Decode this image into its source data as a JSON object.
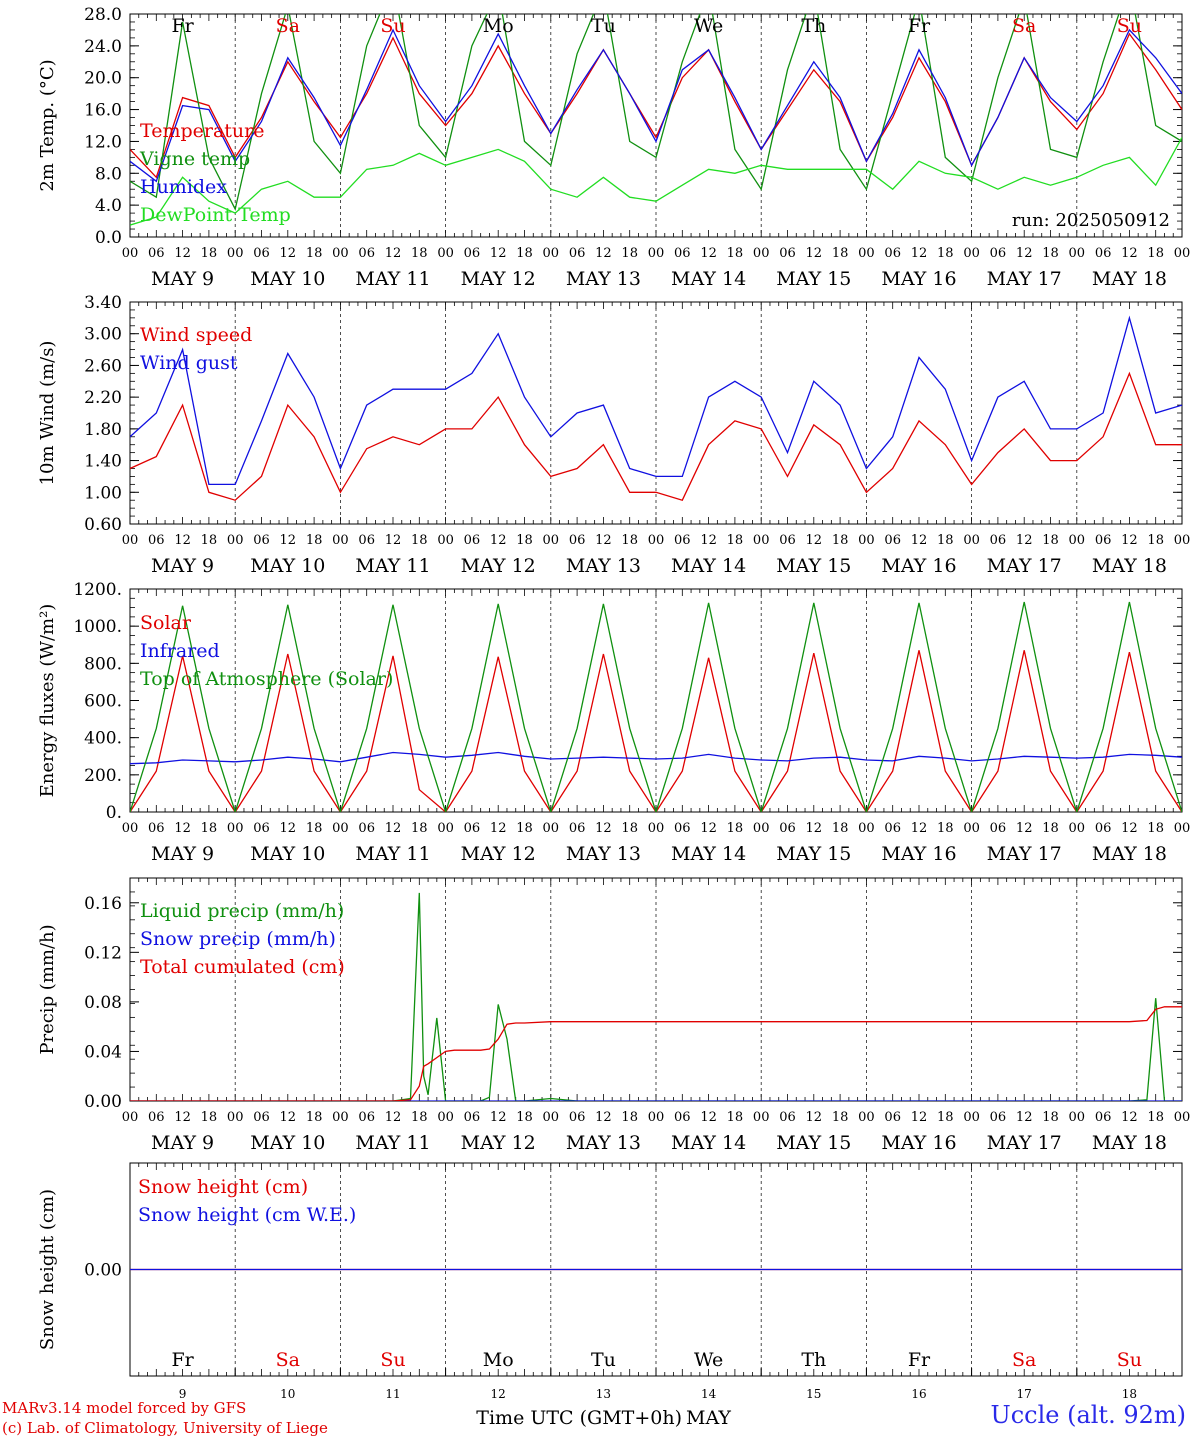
{
  "days": [
    "9",
    "10",
    "11",
    "12",
    "13",
    "14",
    "15",
    "16",
    "17",
    "18"
  ],
  "month": "MAY",
  "weekdays": [
    "Fr",
    "Sa",
    "Su",
    "Mo",
    "Tu",
    "We",
    "Th",
    "Fr",
    "Sa",
    "Su"
  ],
  "weekday_colors": [
    "#000000",
    "#e00000",
    "#e00000",
    "#000000",
    "#000000",
    "#000000",
    "#000000",
    "#000000",
    "#e00000",
    "#e00000"
  ],
  "hour_labels": [
    "00",
    "06",
    "12",
    "18"
  ],
  "run_label": "run: 2025050912",
  "xlabel": "Time UTC (GMT+0h)",
  "xlabel_month": "MAY",
  "credit": [
    "MARv3.14 model forced by GFS",
    "(c) Lab. of Climatology, University of Liege"
  ],
  "station": "Uccle (alt. 92m)",
  "colors": {
    "red": "#e00000",
    "blue": "#1010e0",
    "green": "#109010",
    "lightgreen": "#22dd22"
  },
  "chart_data": [
    {
      "type": "line",
      "ylabel": "2m Temp. (°C)",
      "ylim": [
        0,
        28
      ],
      "yticks": [
        "0.0",
        "4.0",
        "8.0",
        "12.0",
        "16.0",
        "20.0",
        "24.0",
        "28.0"
      ],
      "x_hours": [
        0,
        6,
        12,
        18,
        24,
        30,
        36,
        42,
        48,
        54,
        60,
        66,
        72,
        78,
        84,
        90,
        96,
        102,
        108,
        114,
        120,
        126,
        132,
        138,
        144,
        150,
        156,
        162,
        168,
        174,
        180,
        186,
        192,
        198,
        204,
        210,
        216,
        222,
        228,
        234,
        240
      ],
      "series": [
        {
          "name": "Temperature",
          "color": "#e00000",
          "values": [
            11.0,
            7.5,
            17.5,
            16.5,
            10.0,
            15.0,
            22.0,
            17.0,
            12.5,
            18.0,
            25.0,
            18.0,
            14.0,
            18.0,
            24.0,
            18.0,
            13.0,
            18.0,
            23.5,
            18.0,
            12.5,
            20.0,
            23.5,
            17.0,
            11.0,
            16.0,
            21.0,
            17.0,
            9.5,
            15.0,
            22.5,
            17.0,
            9.0,
            15.0,
            22.5,
            17.0,
            13.5,
            18.0,
            25.5,
            21.0,
            16.0
          ]
        },
        {
          "name": "Vigne temp",
          "color": "#109010",
          "values": [
            7.0,
            5.0,
            27.0,
            10.0,
            3.5,
            18.0,
            29.0,
            12.0,
            8.0,
            24.0,
            32.0,
            14.0,
            10.0,
            24.0,
            31.0,
            12.0,
            9.0,
            23.0,
            31.0,
            12.0,
            10.0,
            22.0,
            31.0,
            11.0,
            6.0,
            21.0,
            31.0,
            11.0,
            6.0,
            18.0,
            30.0,
            10.0,
            7.0,
            20.0,
            30.0,
            11.0,
            10.0,
            22.0,
            32.0,
            14.0,
            12.0
          ]
        },
        {
          "name": "Humidex",
          "color": "#1010e0",
          "values": [
            9.5,
            7.0,
            16.5,
            16.0,
            9.5,
            14.5,
            22.5,
            17.5,
            11.5,
            18.5,
            26.0,
            19.0,
            14.5,
            19.0,
            25.5,
            19.0,
            13.0,
            18.5,
            23.5,
            18.0,
            12.0,
            21.0,
            23.5,
            17.5,
            11.0,
            16.5,
            22.0,
            17.5,
            9.5,
            15.5,
            23.5,
            17.5,
            9.0,
            15.0,
            22.5,
            17.5,
            14.5,
            19.0,
            26.0,
            22.5,
            18.0
          ]
        },
        {
          "name": "DewPoint Temp",
          "color": "#22dd22",
          "values": [
            1.5,
            2.5,
            7.5,
            4.5,
            3.0,
            6.0,
            7.0,
            5.0,
            5.0,
            8.5,
            9.0,
            10.5,
            9.0,
            10.0,
            11.0,
            9.5,
            6.0,
            5.0,
            7.5,
            5.0,
            4.5,
            6.5,
            8.5,
            8.0,
            9.0,
            8.5,
            8.5,
            8.5,
            8.5,
            6.0,
            9.5,
            8.0,
            7.5,
            6.0,
            7.5,
            6.5,
            7.5,
            9.0,
            10.0,
            6.5,
            12.5
          ]
        }
      ]
    },
    {
      "type": "line",
      "ylabel": "10m Wind (m/s)",
      "ylim": [
        0.6,
        3.4
      ],
      "yticks": [
        "0.60",
        "1.00",
        "1.40",
        "1.80",
        "2.20",
        "2.60",
        "3.00",
        "3.40"
      ],
      "x_hours": [
        0,
        6,
        12,
        18,
        24,
        30,
        36,
        42,
        48,
        54,
        60,
        66,
        72,
        78,
        84,
        90,
        96,
        102,
        108,
        114,
        120,
        126,
        132,
        138,
        144,
        150,
        156,
        162,
        168,
        174,
        180,
        186,
        192,
        198,
        204,
        210,
        216,
        222,
        228,
        234,
        240
      ],
      "series": [
        {
          "name": "Wind speed",
          "color": "#e00000",
          "values": [
            1.3,
            1.45,
            2.1,
            1.0,
            0.9,
            1.2,
            2.1,
            1.7,
            1.0,
            1.55,
            1.7,
            1.6,
            1.8,
            1.8,
            2.2,
            1.6,
            1.2,
            1.3,
            1.6,
            1.0,
            1.0,
            0.9,
            1.6,
            1.9,
            1.8,
            1.2,
            1.85,
            1.6,
            1.0,
            1.3,
            1.9,
            1.6,
            1.1,
            1.5,
            1.8,
            1.4,
            1.4,
            1.7,
            2.5,
            1.6,
            1.6
          ]
        },
        {
          "name": "Wind gust",
          "color": "#1010e0",
          "values": [
            1.7,
            2.0,
            2.8,
            1.1,
            1.1,
            1.9,
            2.75,
            2.2,
            1.3,
            2.1,
            2.3,
            2.3,
            2.3,
            2.5,
            3.0,
            2.2,
            1.7,
            2.0,
            2.1,
            1.3,
            1.2,
            1.2,
            2.2,
            2.4,
            2.2,
            1.5,
            2.4,
            2.1,
            1.3,
            1.7,
            2.7,
            2.3,
            1.4,
            2.2,
            2.4,
            1.8,
            1.8,
            2.0,
            3.2,
            2.0,
            2.1
          ]
        }
      ]
    },
    {
      "type": "line",
      "ylabel": "Energy fluxes (W/m²)",
      "ylim": [
        0,
        1200
      ],
      "yticks": [
        "0.",
        "200.",
        "400.",
        "600.",
        "800.",
        "1000.",
        "1200."
      ],
      "x_hours": [
        0,
        6,
        12,
        18,
        24,
        30,
        36,
        42,
        48,
        54,
        60,
        66,
        72,
        78,
        84,
        90,
        96,
        102,
        108,
        114,
        120,
        126,
        132,
        138,
        144,
        150,
        156,
        162,
        168,
        174,
        180,
        186,
        192,
        198,
        204,
        210,
        216,
        222,
        228,
        234,
        240
      ],
      "series": [
        {
          "name": "Solar",
          "color": "#e00000",
          "values": [
            0,
            220,
            840,
            220,
            0,
            220,
            850,
            220,
            0,
            220,
            840,
            120,
            0,
            220,
            835,
            220,
            0,
            220,
            850,
            220,
            0,
            220,
            830,
            220,
            0,
            220,
            855,
            220,
            0,
            220,
            870,
            220,
            0,
            220,
            870,
            220,
            0,
            220,
            860,
            220,
            0
          ]
        },
        {
          "name": "Infrared",
          "color": "#1010e0",
          "values": [
            260,
            265,
            280,
            275,
            270,
            280,
            295,
            285,
            270,
            295,
            320,
            310,
            295,
            305,
            320,
            300,
            285,
            290,
            295,
            290,
            285,
            290,
            310,
            290,
            280,
            275,
            290,
            295,
            280,
            275,
            300,
            290,
            275,
            285,
            300,
            295,
            290,
            295,
            310,
            305,
            295
          ]
        },
        {
          "name": "Top of Atmosphere (Solar)",
          "color": "#109010",
          "values": [
            0,
            450,
            1110,
            450,
            0,
            450,
            1115,
            450,
            0,
            450,
            1115,
            450,
            0,
            450,
            1120,
            450,
            0,
            450,
            1120,
            450,
            0,
            450,
            1125,
            450,
            0,
            450,
            1125,
            450,
            0,
            450,
            1125,
            450,
            0,
            450,
            1130,
            450,
            0,
            450,
            1130,
            450,
            0
          ]
        }
      ]
    },
    {
      "type": "line",
      "ylabel": "Precip (mm/h)",
      "ylim": [
        0,
        0.18
      ],
      "yticks": [
        "0.00",
        "0.04",
        "0.08",
        "0.12",
        "0.16"
      ],
      "x_hours": [
        0,
        6,
        12,
        18,
        24,
        30,
        36,
        42,
        48,
        54,
        60,
        64,
        66,
        67,
        68,
        70,
        72,
        74,
        76,
        78,
        80,
        82,
        84,
        86,
        88,
        90,
        96,
        102,
        108,
        114,
        120,
        126,
        132,
        138,
        144,
        150,
        156,
        162,
        168,
        174,
        180,
        186,
        192,
        198,
        204,
        210,
        216,
        222,
        228,
        232,
        234,
        236,
        240
      ],
      "series": [
        {
          "name": "Liquid precip (mm/h)",
          "color": "#109010",
          "values": [
            0,
            0,
            0,
            0,
            0,
            0,
            0,
            0,
            0,
            0,
            0,
            0.002,
            0.168,
            0.02,
            0.005,
            0.067,
            0,
            0,
            0,
            0,
            0,
            0.003,
            0.078,
            0.05,
            0,
            0,
            0.002,
            0,
            0,
            0,
            0,
            0,
            0,
            0,
            0,
            0,
            0,
            0,
            0,
            0,
            0,
            0,
            0,
            0,
            0,
            0,
            0,
            0,
            0,
            0.001,
            0.083,
            0,
            0
          ]
        },
        {
          "name": "Snow precip (mm/h)",
          "color": "#1010e0",
          "values": [
            0,
            0,
            0,
            0,
            0,
            0,
            0,
            0,
            0,
            0,
            0,
            0,
            0,
            0,
            0,
            0,
            0,
            0,
            0,
            0,
            0,
            0,
            0,
            0,
            0,
            0,
            0,
            0,
            0,
            0,
            0,
            0,
            0,
            0,
            0,
            0,
            0,
            0,
            0,
            0,
            0,
            0,
            0,
            0,
            0,
            0,
            0,
            0,
            0,
            0,
            0,
            0,
            0
          ]
        },
        {
          "name": "Total cumulated (cm)",
          "color": "#e00000",
          "values": [
            0,
            0,
            0,
            0,
            0,
            0,
            0,
            0,
            0,
            0,
            0,
            0.001,
            0.012,
            0.028,
            0.03,
            0.035,
            0.04,
            0.041,
            0.041,
            0.041,
            0.041,
            0.042,
            0.05,
            0.062,
            0.063,
            0.063,
            0.064,
            0.064,
            0.064,
            0.064,
            0.064,
            0.064,
            0.064,
            0.064,
            0.064,
            0.064,
            0.064,
            0.064,
            0.064,
            0.064,
            0.064,
            0.064,
            0.064,
            0.064,
            0.064,
            0.064,
            0.064,
            0.064,
            0.064,
            0.065,
            0.074,
            0.076,
            0.076
          ]
        }
      ]
    },
    {
      "type": "line",
      "ylabel": "Snow height (cm)",
      "ylim": [
        -1,
        1
      ],
      "yticks": [
        "0.00"
      ],
      "x_hours": [
        0,
        240
      ],
      "series": [
        {
          "name": "Snow height (cm)",
          "color": "#e00000",
          "values": [
            0,
            0
          ]
        },
        {
          "name": "Snow height (cm W.E.)",
          "color": "#1010e0",
          "values": [
            0,
            0
          ]
        }
      ]
    }
  ]
}
